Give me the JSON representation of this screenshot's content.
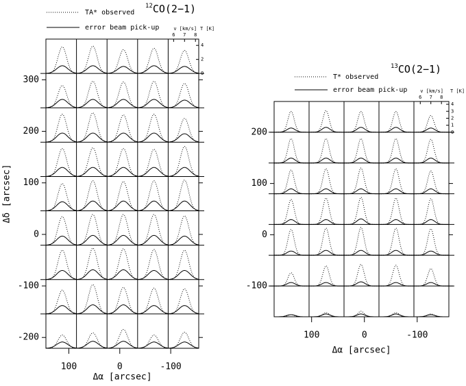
{
  "chart_data": [
    {
      "type": "spectra-grid",
      "title_superscript": "12",
      "title": "CO(2−1)",
      "xlabel": "Δα [arcsec]",
      "ylabel": "Δδ [arcsec]",
      "xlim": [
        145,
        -155
      ],
      "xticks": [
        100,
        0,
        -100
      ],
      "ylim": [
        -221,
        379
      ],
      "yticks": [
        300,
        200,
        100,
        0,
        -100,
        -200
      ],
      "columns": 5,
      "rows": 9,
      "line_center": 7.0,
      "inset": {
        "xlabel": "v [km/s]",
        "ylabel": "T [K]",
        "xlim": [
          5.5,
          8.3
        ],
        "xticks": [
          6,
          7,
          8
        ],
        "ylim": [
          0,
          4.9
        ],
        "yticks": [
          0,
          2,
          4
        ]
      },
      "series": [
        {
          "name": "TA* observed",
          "color": "#000000",
          "style": "dotted",
          "values": [
            3.8,
            3.9,
            3.4,
            3.6,
            3.3,
            3.2,
            3.8,
            3.7,
            3.8,
            3.5,
            4.0,
            4.2,
            3.9,
            4.0,
            3.4,
            4.0,
            4.1,
            4.0,
            3.9,
            4.3,
            3.9,
            4.3,
            4.2,
            4.3,
            4.4,
            4.1,
            4.4,
            4.4,
            4.4,
            4.2,
            4.2,
            4.5,
            4.4,
            4.3,
            4.2,
            3.4,
            4.2,
            3.8,
            3.7,
            3.6,
            1.9,
            2.2,
            2.7,
            1.9,
            2.3
          ]
        },
        {
          "name": "error beam pick-up",
          "color": "#000000",
          "style": "solid",
          "values": [
            1.1,
            1.1,
            1.0,
            1.1,
            1.0,
            1.2,
            1.2,
            1.2,
            1.2,
            1.1,
            1.3,
            1.3,
            1.3,
            1.3,
            1.2,
            1.3,
            1.3,
            1.3,
            1.3,
            1.3,
            1.3,
            1.4,
            1.4,
            1.4,
            1.4,
            1.3,
            1.4,
            1.4,
            1.4,
            1.3,
            1.3,
            1.4,
            1.4,
            1.3,
            1.3,
            1.2,
            1.3,
            1.3,
            1.2,
            1.2,
            0.9,
            1.0,
            1.0,
            0.9,
            0.9
          ]
        }
      ]
    },
    {
      "type": "spectra-grid",
      "title_superscript": "13",
      "title": "CO(2−1)",
      "xlabel": "Δα [arcsec]",
      "xlim": [
        171,
        -160
      ],
      "xticks": [
        100,
        0,
        -100
      ],
      "ylim": [
        -160,
        260
      ],
      "yticks": [
        200,
        100,
        0,
        -100
      ],
      "columns": 5,
      "rows": 7,
      "line_center": 7.0,
      "inset": {
        "xlabel": "v [km/s]",
        "ylabel": "T [K]",
        "xlim": [
          5.4,
          8.7
        ],
        "xticks": [
          6,
          7,
          8
        ],
        "ylim": [
          0,
          4.4
        ],
        "yticks": [
          0,
          1,
          2,
          3,
          4
        ]
      },
      "series": [
        {
          "name": "T* observed",
          "color": "#000000",
          "style": "dotted",
          "values": [
            3.0,
            3.1,
            3.0,
            3.0,
            2.4,
            3.5,
            3.5,
            3.5,
            3.5,
            3.4,
            3.4,
            3.6,
            3.7,
            3.6,
            3.3,
            3.6,
            3.8,
            3.9,
            3.8,
            3.7,
            3.7,
            3.9,
            4.0,
            3.9,
            3.8,
            1.9,
            2.9,
            3.1,
            3.0,
            2.5,
            0.3,
            0.6,
            0.8,
            0.6,
            0.4
          ]
        },
        {
          "name": "error beam pick-up",
          "color": "#000000",
          "style": "solid",
          "values": [
            0.6,
            0.7,
            0.7,
            0.7,
            0.6,
            0.7,
            0.7,
            0.7,
            0.7,
            0.7,
            0.7,
            0.7,
            0.7,
            0.7,
            0.7,
            0.7,
            0.7,
            0.8,
            0.7,
            0.7,
            0.6,
            0.7,
            0.7,
            0.7,
            0.6,
            0.5,
            0.5,
            0.6,
            0.5,
            0.5,
            0.3,
            0.4,
            0.4,
            0.4,
            0.3
          ]
        }
      ]
    }
  ]
}
